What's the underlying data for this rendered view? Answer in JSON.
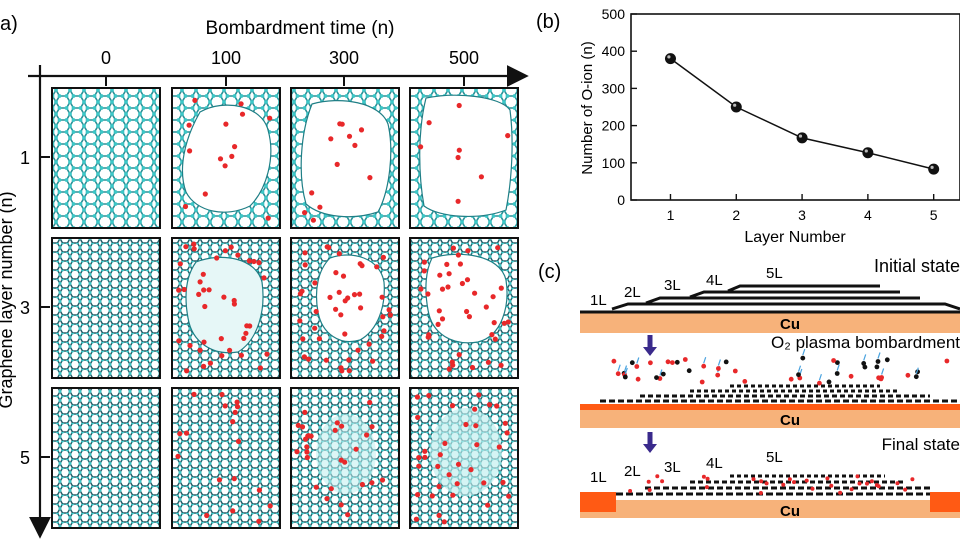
{
  "panel_a": {
    "label": "a)",
    "top_axis_title": "Bombardment time (n)",
    "time_ticks": [
      "0",
      "100",
      "300",
      "500"
    ],
    "left_axis_title": "Graphene layer number (n)",
    "layer_ticks": [
      "1",
      "3",
      "5"
    ],
    "atom_colors": {
      "carbon": "#3cc7c7",
      "oxygen": "#e8282a",
      "bond": "#1f7f86"
    }
  },
  "panel_b": {
    "label": "(b)"
  },
  "panel_c": {
    "label": "(c)",
    "initial_title": "Initial state",
    "plasma_title": "O₂ plasma bombardment",
    "final_title": "Final state",
    "substrate_label": "Cu",
    "layer_labels": [
      "1L",
      "2L",
      "3L",
      "4L",
      "5L"
    ],
    "colors": {
      "substrate": "#f7b27a",
      "substrate_dark": "#ff5a14",
      "arrow": "#3a2a8c",
      "oxygen": "#e8282a"
    }
  },
  "chart_data": {
    "type": "line",
    "title": "",
    "xlabel": "Layer Number",
    "ylabel": "Number of O-ion (n)",
    "x": [
      1,
      2,
      3,
      4,
      5
    ],
    "series": [
      {
        "values": [
          380,
          250,
          167,
          127,
          83
        ]
      }
    ],
    "xticks": [
      "1",
      "2",
      "3",
      "4",
      "5"
    ],
    "yticks": [
      "0",
      "100",
      "200",
      "300",
      "400",
      "500"
    ],
    "xlim": [
      0.4,
      5.4
    ],
    "ylim": [
      0,
      500
    ],
    "grid": false,
    "legend": "none"
  }
}
